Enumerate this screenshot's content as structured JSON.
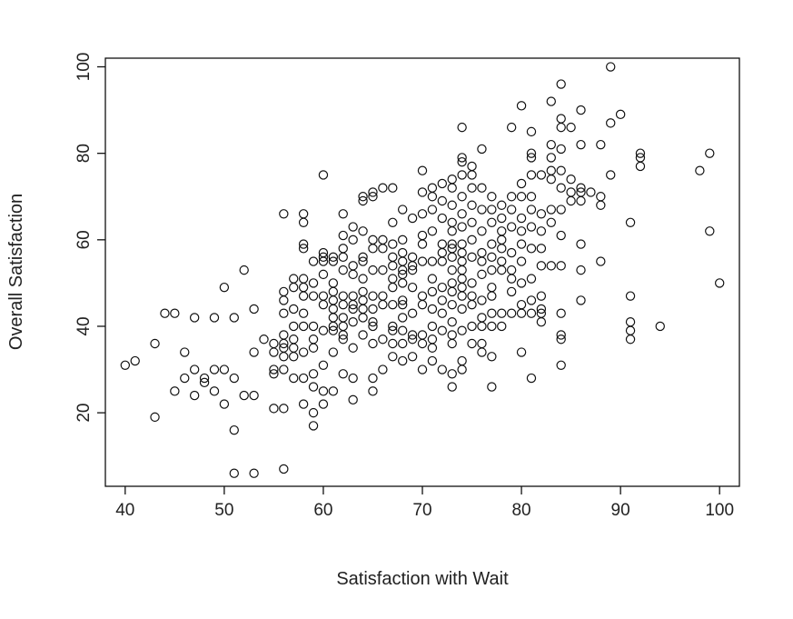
{
  "chart_data": {
    "type": "scatter",
    "title": "",
    "xlabel": "Satisfaction with Wait",
    "ylabel": "Overall Satisfaction",
    "xlim": [
      38,
      102
    ],
    "ylim": [
      3,
      102
    ],
    "xticks": [
      40,
      50,
      60,
      70,
      80,
      90,
      100
    ],
    "yticks": [
      20,
      40,
      60,
      80,
      100
    ],
    "grid": false,
    "marker": "open-circle",
    "colors": {
      "marker": "#111111",
      "axis": "#111111",
      "text": "#222222",
      "background": "#ffffff"
    },
    "points": [
      [
        40,
        31
      ],
      [
        41,
        32
      ],
      [
        43,
        19
      ],
      [
        43,
        36
      ],
      [
        44,
        43
      ],
      [
        45,
        43
      ],
      [
        45,
        25
      ],
      [
        46,
        28
      ],
      [
        46,
        34
      ],
      [
        47,
        42
      ],
      [
        47,
        30
      ],
      [
        47,
        24
      ],
      [
        48,
        28
      ],
      [
        48,
        27
      ],
      [
        49,
        25
      ],
      [
        49,
        30
      ],
      [
        49,
        42
      ],
      [
        50,
        30
      ],
      [
        50,
        22
      ],
      [
        50,
        49
      ],
      [
        51,
        28
      ],
      [
        51,
        16
      ],
      [
        51,
        6
      ],
      [
        51,
        42
      ],
      [
        52,
        53
      ],
      [
        52,
        24
      ],
      [
        53,
        24
      ],
      [
        53,
        6
      ],
      [
        53,
        44
      ],
      [
        53,
        34
      ],
      [
        54,
        37
      ],
      [
        55,
        36
      ],
      [
        55,
        30
      ],
      [
        55,
        29
      ],
      [
        55,
        21
      ],
      [
        55,
        34
      ],
      [
        56,
        66
      ],
      [
        56,
        48
      ],
      [
        56,
        46
      ],
      [
        56,
        43
      ],
      [
        56,
        38
      ],
      [
        56,
        36
      ],
      [
        56,
        35
      ],
      [
        56,
        33
      ],
      [
        56,
        30
      ],
      [
        56,
        21
      ],
      [
        56,
        7
      ],
      [
        57,
        51
      ],
      [
        57,
        49
      ],
      [
        57,
        44
      ],
      [
        57,
        40
      ],
      [
        57,
        37
      ],
      [
        57,
        35
      ],
      [
        57,
        33
      ],
      [
        57,
        28
      ],
      [
        58,
        66
      ],
      [
        58,
        64
      ],
      [
        58,
        59
      ],
      [
        58,
        58
      ],
      [
        58,
        51
      ],
      [
        58,
        49
      ],
      [
        58,
        47
      ],
      [
        58,
        43
      ],
      [
        58,
        40
      ],
      [
        58,
        34
      ],
      [
        58,
        28
      ],
      [
        58,
        22
      ],
      [
        59,
        55
      ],
      [
        59,
        50
      ],
      [
        59,
        47
      ],
      [
        59,
        40
      ],
      [
        59,
        37
      ],
      [
        59,
        35
      ],
      [
        59,
        29
      ],
      [
        59,
        26
      ],
      [
        59,
        20
      ],
      [
        59,
        17
      ],
      [
        60,
        75
      ],
      [
        60,
        57
      ],
      [
        60,
        56
      ],
      [
        60,
        55
      ],
      [
        60,
        52
      ],
      [
        60,
        47
      ],
      [
        60,
        45
      ],
      [
        60,
        39
      ],
      [
        60,
        31
      ],
      [
        60,
        25
      ],
      [
        60,
        22
      ],
      [
        61,
        56
      ],
      [
        61,
        55
      ],
      [
        61,
        50
      ],
      [
        61,
        48
      ],
      [
        61,
        46
      ],
      [
        61,
        44
      ],
      [
        61,
        42
      ],
      [
        61,
        40
      ],
      [
        61,
        39
      ],
      [
        61,
        34
      ],
      [
        61,
        25
      ],
      [
        62,
        66
      ],
      [
        62,
        61
      ],
      [
        62,
        58
      ],
      [
        62,
        56
      ],
      [
        62,
        53
      ],
      [
        62,
        47
      ],
      [
        62,
        45
      ],
      [
        62,
        42
      ],
      [
        62,
        40
      ],
      [
        62,
        38
      ],
      [
        62,
        37
      ],
      [
        62,
        29
      ],
      [
        63,
        63
      ],
      [
        63,
        60
      ],
      [
        63,
        54
      ],
      [
        63,
        52
      ],
      [
        63,
        47
      ],
      [
        63,
        45
      ],
      [
        63,
        44
      ],
      [
        63,
        41
      ],
      [
        63,
        35
      ],
      [
        63,
        28
      ],
      [
        63,
        23
      ],
      [
        64,
        70
      ],
      [
        64,
        69
      ],
      [
        64,
        62
      ],
      [
        64,
        56
      ],
      [
        64,
        55
      ],
      [
        64,
        51
      ],
      [
        64,
        48
      ],
      [
        64,
        46
      ],
      [
        64,
        44
      ],
      [
        64,
        42
      ],
      [
        64,
        38
      ],
      [
        65,
        71
      ],
      [
        65,
        70
      ],
      [
        65,
        60
      ],
      [
        65,
        58
      ],
      [
        65,
        53
      ],
      [
        65,
        47
      ],
      [
        65,
        44
      ],
      [
        65,
        41
      ],
      [
        65,
        40
      ],
      [
        65,
        36
      ],
      [
        65,
        28
      ],
      [
        65,
        25
      ],
      [
        66,
        72
      ],
      [
        66,
        60
      ],
      [
        66,
        58
      ],
      [
        66,
        53
      ],
      [
        66,
        47
      ],
      [
        66,
        45
      ],
      [
        66,
        37
      ],
      [
        66,
        30
      ],
      [
        67,
        72
      ],
      [
        67,
        64
      ],
      [
        67,
        59
      ],
      [
        67,
        56
      ],
      [
        67,
        54
      ],
      [
        67,
        51
      ],
      [
        67,
        49
      ],
      [
        67,
        45
      ],
      [
        67,
        40
      ],
      [
        67,
        39
      ],
      [
        67,
        36
      ],
      [
        67,
        33
      ],
      [
        68,
        67
      ],
      [
        68,
        60
      ],
      [
        68,
        57
      ],
      [
        68,
        55
      ],
      [
        68,
        53
      ],
      [
        68,
        52
      ],
      [
        68,
        50
      ],
      [
        68,
        46
      ],
      [
        68,
        45
      ],
      [
        68,
        42
      ],
      [
        68,
        39
      ],
      [
        68,
        36
      ],
      [
        68,
        32
      ],
      [
        69,
        65
      ],
      [
        69,
        56
      ],
      [
        69,
        54
      ],
      [
        69,
        53
      ],
      [
        69,
        49
      ],
      [
        69,
        43
      ],
      [
        69,
        38
      ],
      [
        69,
        37
      ],
      [
        69,
        33
      ],
      [
        70,
        76
      ],
      [
        70,
        71
      ],
      [
        70,
        66
      ],
      [
        70,
        61
      ],
      [
        70,
        59
      ],
      [
        70,
        55
      ],
      [
        70,
        47
      ],
      [
        70,
        45
      ],
      [
        70,
        38
      ],
      [
        70,
        36
      ],
      [
        70,
        30
      ],
      [
        71,
        72
      ],
      [
        71,
        70
      ],
      [
        71,
        67
      ],
      [
        71,
        62
      ],
      [
        71,
        55
      ],
      [
        71,
        51
      ],
      [
        71,
        48
      ],
      [
        71,
        44
      ],
      [
        71,
        40
      ],
      [
        71,
        37
      ],
      [
        71,
        35
      ],
      [
        71,
        32
      ],
      [
        72,
        73
      ],
      [
        72,
        69
      ],
      [
        72,
        65
      ],
      [
        72,
        59
      ],
      [
        72,
        57
      ],
      [
        72,
        55
      ],
      [
        72,
        49
      ],
      [
        72,
        46
      ],
      [
        72,
        43
      ],
      [
        72,
        39
      ],
      [
        72,
        30
      ],
      [
        73,
        74
      ],
      [
        73,
        72
      ],
      [
        73,
        68
      ],
      [
        73,
        64
      ],
      [
        73,
        62
      ],
      [
        73,
        59
      ],
      [
        73,
        58
      ],
      [
        73,
        56
      ],
      [
        73,
        53
      ],
      [
        73,
        50
      ],
      [
        73,
        48
      ],
      [
        73,
        45
      ],
      [
        73,
        41
      ],
      [
        73,
        38
      ],
      [
        73,
        36
      ],
      [
        73,
        29
      ],
      [
        73,
        26
      ],
      [
        74,
        86
      ],
      [
        74,
        79
      ],
      [
        74,
        78
      ],
      [
        74,
        75
      ],
      [
        74,
        70
      ],
      [
        74,
        66
      ],
      [
        74,
        63
      ],
      [
        74,
        59
      ],
      [
        74,
        57
      ],
      [
        74,
        55
      ],
      [
        74,
        53
      ],
      [
        74,
        51
      ],
      [
        74,
        49
      ],
      [
        74,
        47
      ],
      [
        74,
        44
      ],
      [
        74,
        39
      ],
      [
        74,
        32
      ],
      [
        74,
        30
      ],
      [
        75,
        77
      ],
      [
        75,
        75
      ],
      [
        75,
        72
      ],
      [
        75,
        68
      ],
      [
        75,
        64
      ],
      [
        75,
        60
      ],
      [
        75,
        56
      ],
      [
        75,
        50
      ],
      [
        75,
        47
      ],
      [
        75,
        45
      ],
      [
        75,
        40
      ],
      [
        75,
        36
      ],
      [
        76,
        81
      ],
      [
        76,
        72
      ],
      [
        76,
        67
      ],
      [
        76,
        62
      ],
      [
        76,
        57
      ],
      [
        76,
        55
      ],
      [
        76,
        52
      ],
      [
        76,
        46
      ],
      [
        76,
        42
      ],
      [
        76,
        40
      ],
      [
        76,
        36
      ],
      [
        76,
        34
      ],
      [
        77,
        70
      ],
      [
        77,
        67
      ],
      [
        77,
        64
      ],
      [
        77,
        59
      ],
      [
        77,
        56
      ],
      [
        77,
        53
      ],
      [
        77,
        49
      ],
      [
        77,
        47
      ],
      [
        77,
        43
      ],
      [
        77,
        40
      ],
      [
        77,
        33
      ],
      [
        77,
        26
      ],
      [
        78,
        68
      ],
      [
        78,
        65
      ],
      [
        78,
        62
      ],
      [
        78,
        60
      ],
      [
        78,
        58
      ],
      [
        78,
        55
      ],
      [
        78,
        53
      ],
      [
        78,
        43
      ],
      [
        78,
        40
      ],
      [
        79,
        86
      ],
      [
        79,
        70
      ],
      [
        79,
        67
      ],
      [
        79,
        63
      ],
      [
        79,
        57
      ],
      [
        79,
        53
      ],
      [
        79,
        51
      ],
      [
        79,
        48
      ],
      [
        79,
        43
      ],
      [
        80,
        91
      ],
      [
        80,
        73
      ],
      [
        80,
        70
      ],
      [
        80,
        65
      ],
      [
        80,
        62
      ],
      [
        80,
        59
      ],
      [
        80,
        55
      ],
      [
        80,
        50
      ],
      [
        80,
        45
      ],
      [
        80,
        43
      ],
      [
        80,
        34
      ],
      [
        81,
        85
      ],
      [
        81,
        80
      ],
      [
        81,
        79
      ],
      [
        81,
        75
      ],
      [
        81,
        70
      ],
      [
        81,
        67
      ],
      [
        81,
        63
      ],
      [
        81,
        58
      ],
      [
        81,
        51
      ],
      [
        81,
        46
      ],
      [
        81,
        43
      ],
      [
        81,
        28
      ],
      [
        82,
        75
      ],
      [
        82,
        66
      ],
      [
        82,
        62
      ],
      [
        82,
        58
      ],
      [
        82,
        54
      ],
      [
        82,
        47
      ],
      [
        82,
        44
      ],
      [
        82,
        43
      ],
      [
        82,
        41
      ],
      [
        83,
        92
      ],
      [
        83,
        82
      ],
      [
        83,
        79
      ],
      [
        83,
        76
      ],
      [
        83,
        74
      ],
      [
        83,
        67
      ],
      [
        83,
        64
      ],
      [
        83,
        54
      ],
      [
        84,
        96
      ],
      [
        84,
        88
      ],
      [
        84,
        86
      ],
      [
        84,
        81
      ],
      [
        84,
        76
      ],
      [
        84,
        72
      ],
      [
        84,
        67
      ],
      [
        84,
        61
      ],
      [
        84,
        54
      ],
      [
        84,
        43
      ],
      [
        84,
        38
      ],
      [
        84,
        37
      ],
      [
        84,
        31
      ],
      [
        85,
        86
      ],
      [
        85,
        74
      ],
      [
        85,
        71
      ],
      [
        85,
        69
      ],
      [
        86,
        90
      ],
      [
        86,
        82
      ],
      [
        86,
        72
      ],
      [
        86,
        71
      ],
      [
        86,
        69
      ],
      [
        86,
        59
      ],
      [
        86,
        53
      ],
      [
        86,
        46
      ],
      [
        87,
        71
      ],
      [
        88,
        82
      ],
      [
        88,
        70
      ],
      [
        88,
        68
      ],
      [
        88,
        55
      ],
      [
        89,
        100
      ],
      [
        89,
        87
      ],
      [
        89,
        75
      ],
      [
        90,
        89
      ],
      [
        91,
        64
      ],
      [
        91,
        47
      ],
      [
        91,
        41
      ],
      [
        91,
        39
      ],
      [
        91,
        37
      ],
      [
        92,
        80
      ],
      [
        92,
        79
      ],
      [
        92,
        77
      ],
      [
        94,
        40
      ],
      [
        98,
        76
      ],
      [
        99,
        80
      ],
      [
        99,
        62
      ],
      [
        100,
        50
      ]
    ]
  }
}
